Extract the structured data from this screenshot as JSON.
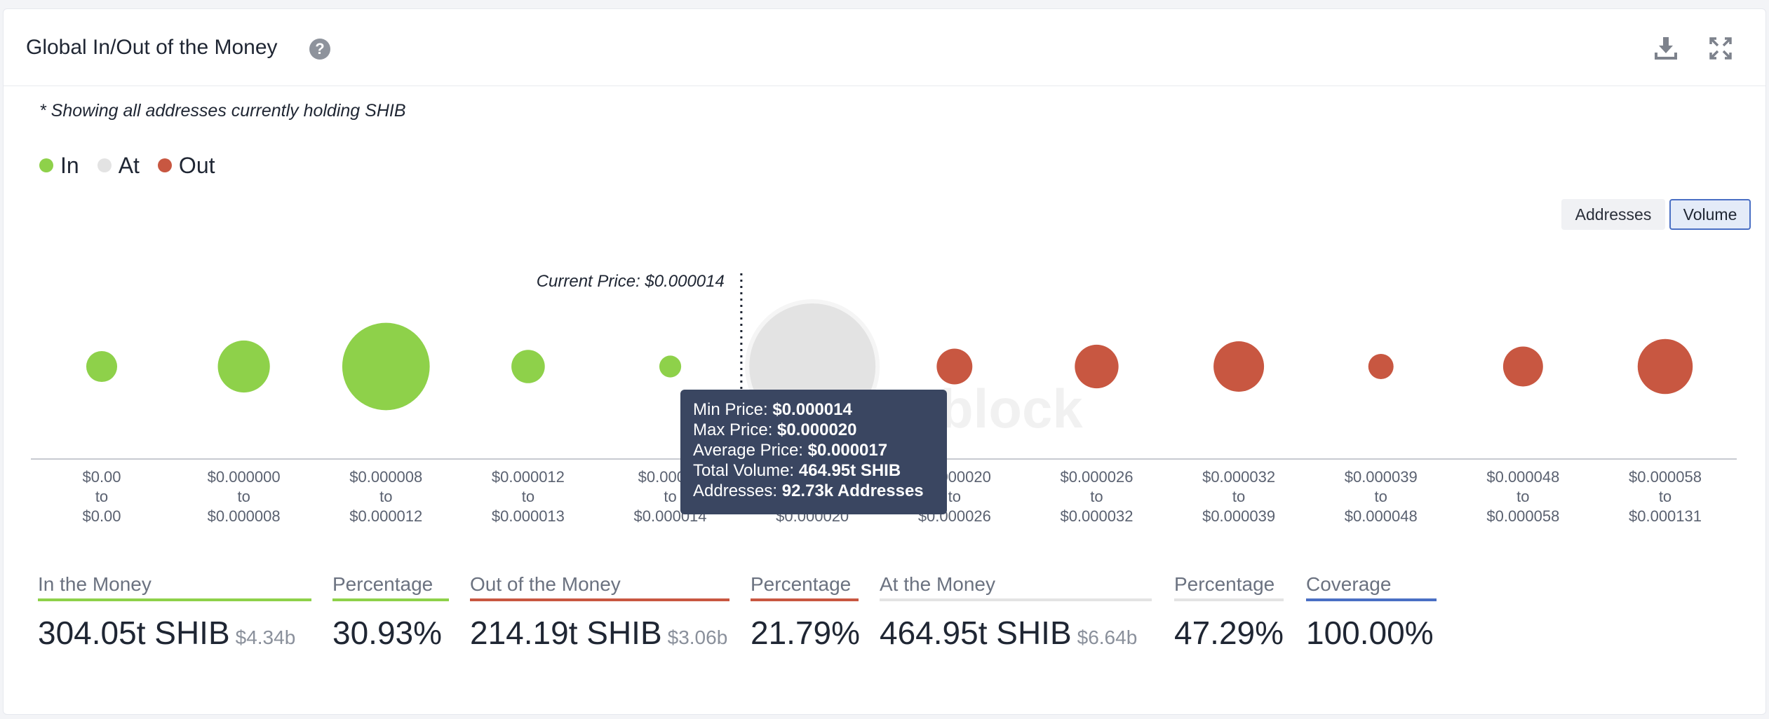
{
  "header": {
    "title": "Global In/Out of the Money",
    "help_icon": "?"
  },
  "note": "* Showing all addresses currently holding SHIB",
  "legend": [
    {
      "label": "In",
      "color": "#8ed14a"
    },
    {
      "label": "At",
      "color": "#e3e3e3"
    },
    {
      "label": "Out",
      "color": "#c85741"
    }
  ],
  "toggles": {
    "addresses": "Addresses",
    "volume": "Volume",
    "active": "volume"
  },
  "watermark": "block",
  "chart_data": {
    "type": "scatter",
    "current_price_label": "Current Price: $0.000014",
    "current_price_between": [
      4,
      5
    ],
    "buckets": [
      {
        "from": "$0.00",
        "sep": "to",
        "to": "$0.00",
        "status": "in",
        "relative_size": 0.06
      },
      {
        "from": "$0.000000",
        "sep": "to",
        "to": "$0.000008",
        "status": "in",
        "relative_size": 0.17
      },
      {
        "from": "$0.000008",
        "sep": "to",
        "to": "$0.000012",
        "status": "in",
        "relative_size": 0.48
      },
      {
        "from": "$0.000012",
        "sep": "to",
        "to": "$0.000013",
        "status": "in",
        "relative_size": 0.07
      },
      {
        "from": "$0.00001",
        "sep": "to",
        "to": "$0.000014",
        "status": "in",
        "relative_size": 0.03
      },
      {
        "from": "",
        "sep": "",
        "to": "$0.000020",
        "status": "at",
        "relative_size": 1.0
      },
      {
        "from": "$0.000020",
        "sep": "to",
        "to": "$0.000026",
        "status": "out",
        "relative_size": 0.08
      },
      {
        "from": "$0.000026",
        "sep": "to",
        "to": "$0.000032",
        "status": "out",
        "relative_size": 0.12
      },
      {
        "from": "$0.000032",
        "sep": "to",
        "to": "$0.000039",
        "status": "out",
        "relative_size": 0.16
      },
      {
        "from": "$0.000039",
        "sep": "to",
        "to": "$0.000048",
        "status": "out",
        "relative_size": 0.04
      },
      {
        "from": "$0.000048",
        "sep": "to",
        "to": "$0.000058",
        "status": "out",
        "relative_size": 0.1
      },
      {
        "from": "$0.000058",
        "sep": "to",
        "to": "$0.000131",
        "status": "out",
        "relative_size": 0.19
      }
    ]
  },
  "tooltip": {
    "min_label": "Min Price: ",
    "min_value": "$0.000014",
    "max_label": "Max Price: ",
    "max_value": "$0.000020",
    "avg_label": "Average Price: ",
    "avg_value": "$0.000017",
    "vol_label": "Total Volume: ",
    "vol_value": "464.95t SHIB",
    "addr_label": "Addresses: ",
    "addr_value": "92.73k Addresses"
  },
  "stats": {
    "in_money": {
      "label": "In the Money",
      "value": "304.05t SHIB",
      "usd": "$4.34b",
      "color": "#8ed14a"
    },
    "in_pct": {
      "label": "Percentage",
      "value": "30.93%",
      "color": "#8ed14a"
    },
    "out_money": {
      "label": "Out of the Money",
      "value": "214.19t SHIB",
      "usd": "$3.06b",
      "color": "#c85741"
    },
    "out_pct": {
      "label": "Percentage",
      "value": "21.79%",
      "color": "#c85741"
    },
    "at_money": {
      "label": "At the Money",
      "value": "464.95t SHIB",
      "usd": "$6.64b",
      "color": "#e3e3e3"
    },
    "at_pct": {
      "label": "Percentage",
      "value": "47.29%",
      "color": "#e3e3e3"
    },
    "coverage": {
      "label": "Coverage",
      "value": "100.00%",
      "color": "#4a6fc4"
    }
  }
}
